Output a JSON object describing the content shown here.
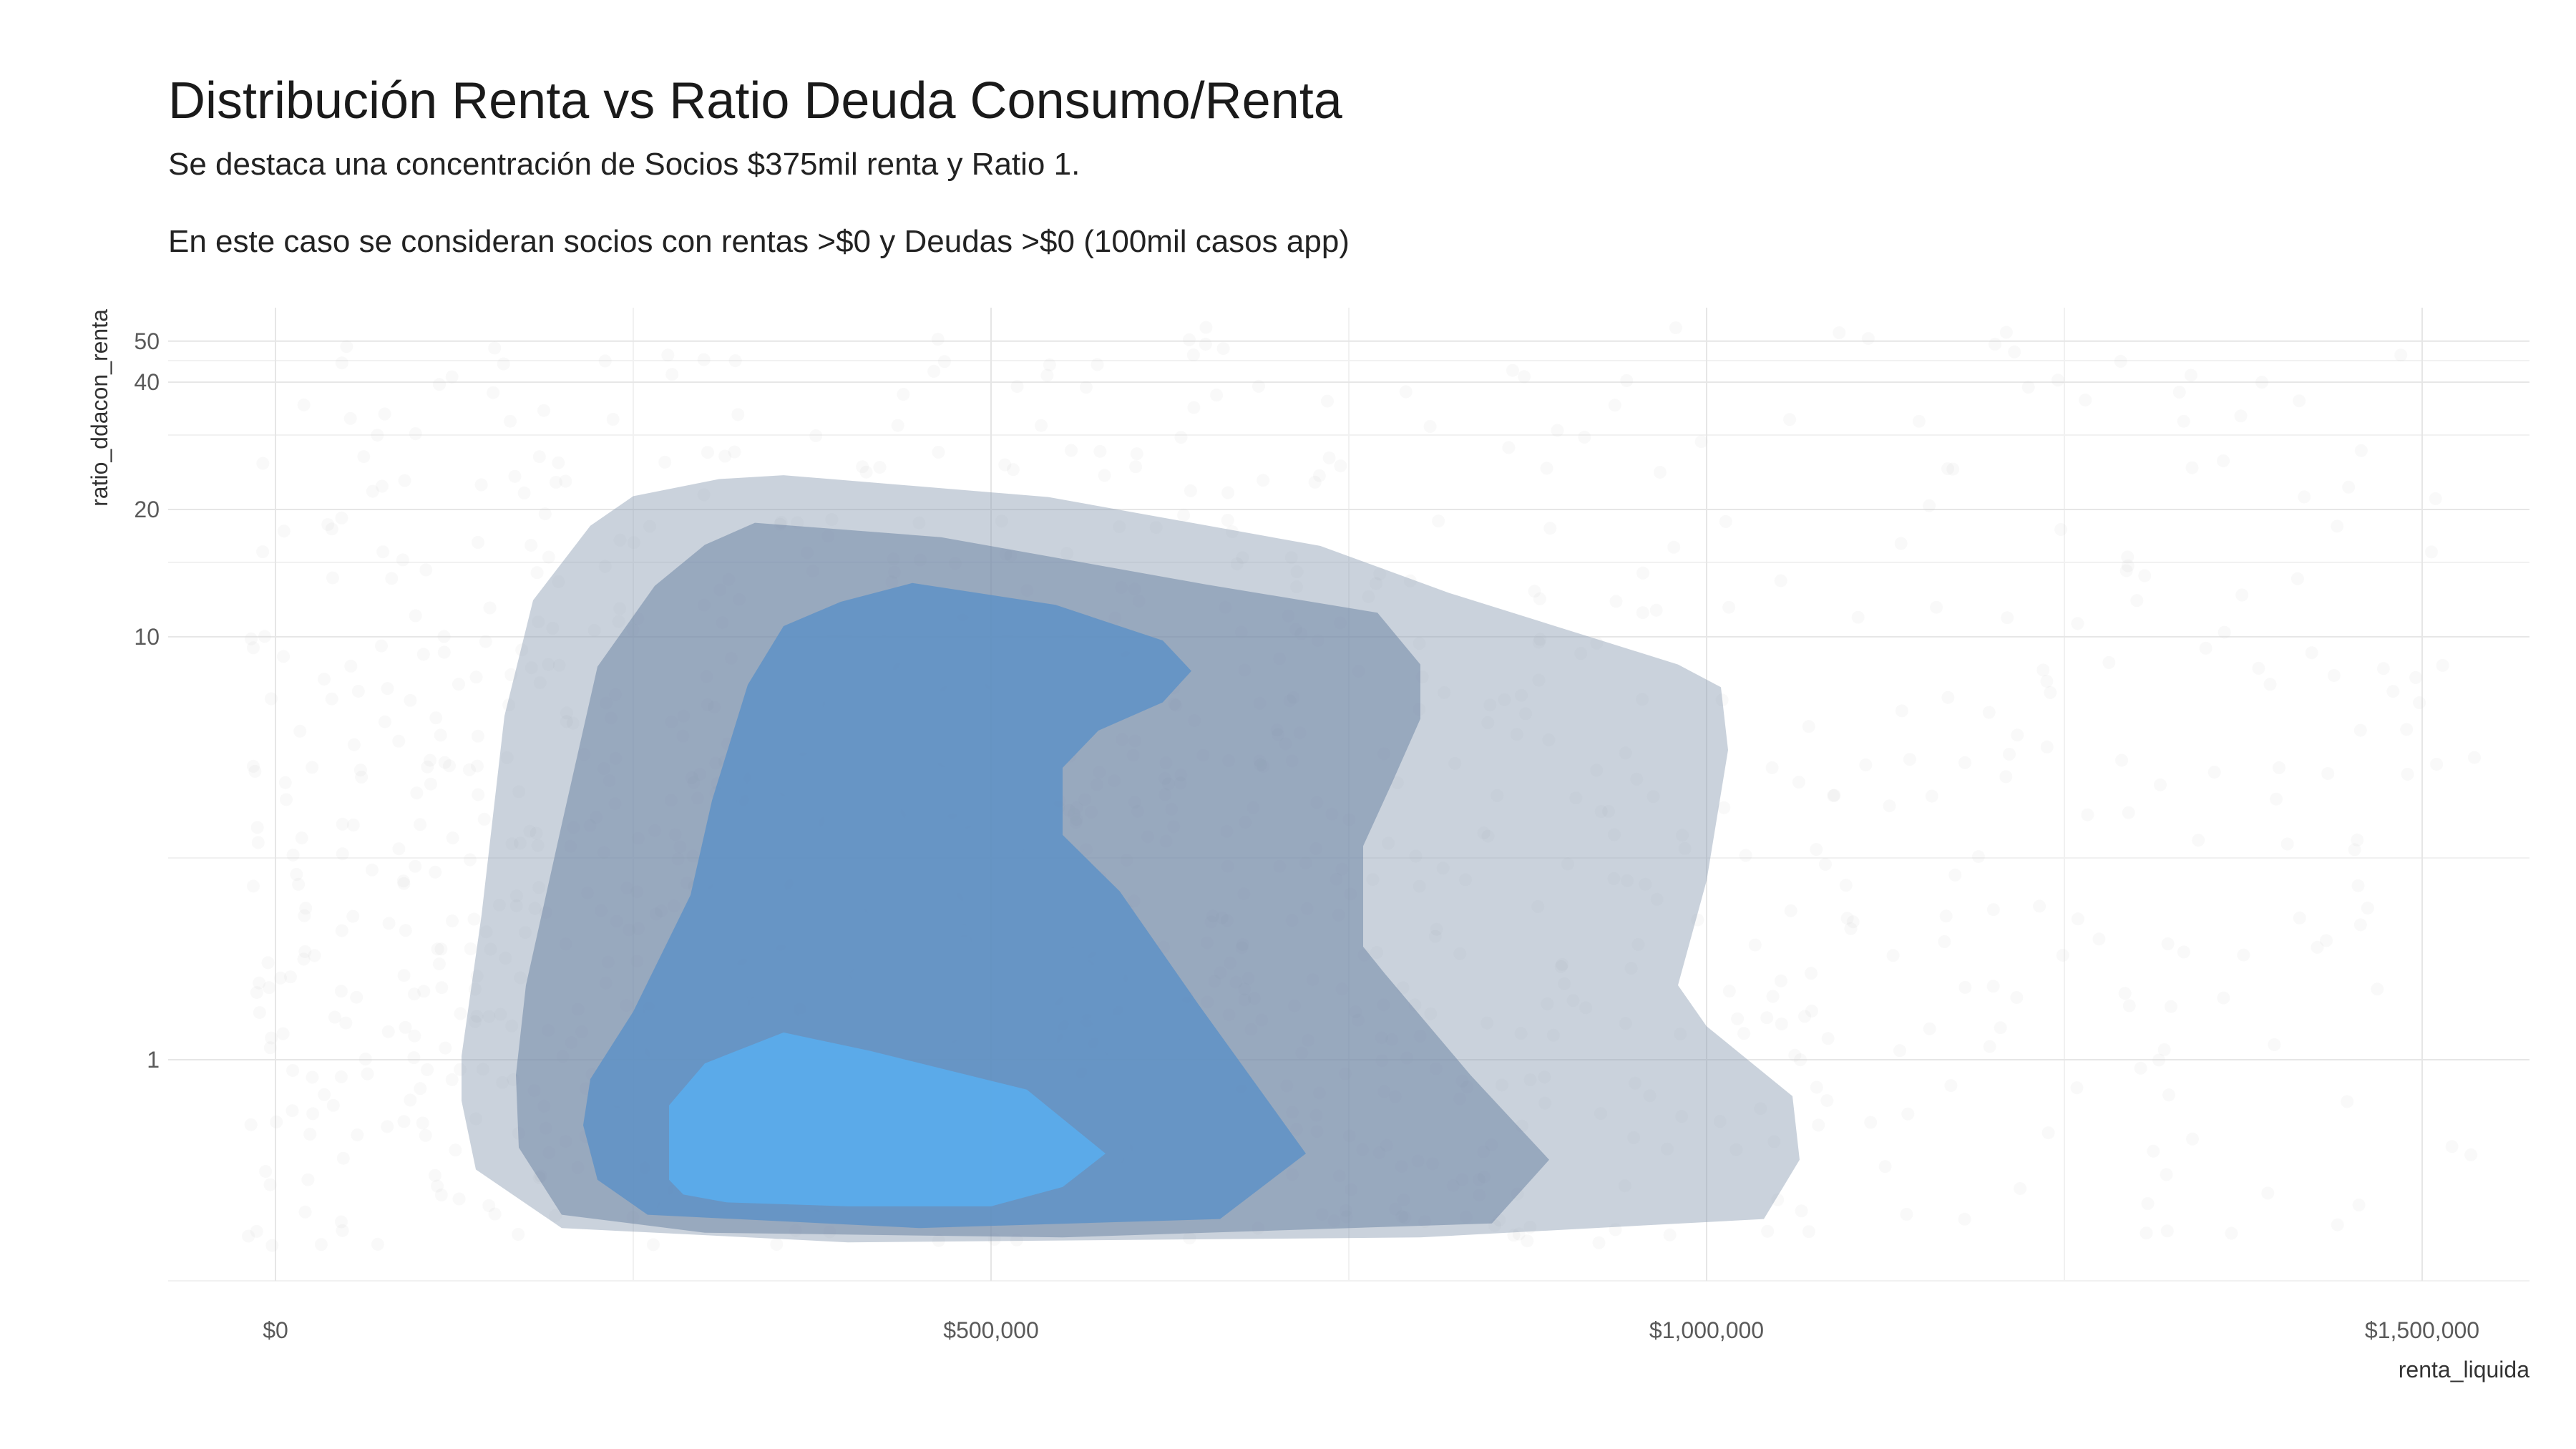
{
  "chart_data": {
    "type": "density_contour",
    "title": "Distribución Renta vs Ratio Deuda Consumo/Renta",
    "subtitle": "Se destaca una concentración de Socios $375mil renta y Ratio 1.",
    "subtitle2": "En este caso se consideran socios con rentas >$0 y Deudas >$0 (100mil casos app)",
    "xlabel": "renta_liquida",
    "ylabel": "ratio_ddacon_renta",
    "x_scale": "linear",
    "y_scale": "log",
    "xlim": [
      -75000,
      1575000
    ],
    "ylim": [
      0.3,
      60
    ],
    "x_ticks": [
      {
        "value": 0,
        "label": "$0"
      },
      {
        "value": 500000,
        "label": "$500,000"
      },
      {
        "value": 1000000,
        "label": "$1,000,000"
      },
      {
        "value": 1500000,
        "label": "$1,500,000"
      }
    ],
    "y_ticks": [
      {
        "value": 1,
        "label": "1"
      },
      {
        "value": 10,
        "label": "10"
      },
      {
        "value": 20,
        "label": "20"
      },
      {
        "value": 40,
        "label": "40"
      },
      {
        "value": 50,
        "label": "50"
      }
    ],
    "x_minor_breaks": [
      250000,
      750000,
      1250000
    ],
    "y_minor_breaks": [
      0.3,
      3,
      15,
      30,
      45
    ],
    "grid": true,
    "legend": "none",
    "scatter_color": "#d0d0d0",
    "levels": [
      {
        "level": 1,
        "color": "#8a9bb2",
        "opacity": 0.45,
        "polygon": [
          [
            130000,
            1.02
          ],
          [
            144000,
            2.2
          ],
          [
            160000,
            6.5
          ],
          [
            180000,
            12.2
          ],
          [
            220000,
            18.3
          ],
          [
            250000,
            21.5
          ],
          [
            310000,
            23.6
          ],
          [
            355000,
            24.1
          ],
          [
            540000,
            21.4
          ],
          [
            730000,
            16.4
          ],
          [
            820000,
            12.7
          ],
          [
            980000,
            8.6
          ],
          [
            1010000,
            7.6
          ],
          [
            1015000,
            5.4
          ],
          [
            1000000,
            2.65
          ],
          [
            980000,
            1.5
          ],
          [
            1000000,
            1.2
          ],
          [
            1060000,
            0.82
          ],
          [
            1065000,
            0.58
          ],
          [
            1040000,
            0.42
          ],
          [
            800000,
            0.38
          ],
          [
            400000,
            0.37
          ],
          [
            200000,
            0.4
          ],
          [
            140000,
            0.55
          ],
          [
            130000,
            0.8
          ]
        ]
      },
      {
        "level": 2,
        "color": "#6f87a6",
        "opacity": 0.55,
        "polygon": [
          [
            170000,
            0.62
          ],
          [
            168000,
            0.92
          ],
          [
            175000,
            1.5
          ],
          [
            200000,
            3.6
          ],
          [
            225000,
            8.5
          ],
          [
            265000,
            13.2
          ],
          [
            300000,
            16.5
          ],
          [
            335000,
            18.6
          ],
          [
            465000,
            17.2
          ],
          [
            650000,
            13.3
          ],
          [
            770000,
            11.4
          ],
          [
            800000,
            8.6
          ],
          [
            800000,
            6.4
          ],
          [
            780000,
            4.5
          ],
          [
            760000,
            3.2
          ],
          [
            760000,
            1.85
          ],
          [
            775000,
            1.6
          ],
          [
            835000,
            0.92
          ],
          [
            890000,
            0.58
          ],
          [
            850000,
            0.41
          ],
          [
            550000,
            0.38
          ],
          [
            300000,
            0.39
          ],
          [
            200000,
            0.43
          ]
        ]
      },
      {
        "level": 3,
        "color": "#5a8fc6",
        "opacity": 0.78,
        "polygon": [
          [
            215000,
            0.7
          ],
          [
            220000,
            0.9
          ],
          [
            250000,
            1.3
          ],
          [
            290000,
            2.45
          ],
          [
            305000,
            4.1
          ],
          [
            330000,
            7.7
          ],
          [
            355000,
            10.6
          ],
          [
            395000,
            12.1
          ],
          [
            445000,
            13.4
          ],
          [
            545000,
            11.9
          ],
          [
            620000,
            9.8
          ],
          [
            640000,
            8.3
          ],
          [
            620000,
            7.0
          ],
          [
            575000,
            6.0
          ],
          [
            550000,
            4.9
          ],
          [
            550000,
            3.4
          ],
          [
            590000,
            2.5
          ],
          [
            645000,
            1.35
          ],
          [
            720000,
            0.6
          ],
          [
            660000,
            0.42
          ],
          [
            450000,
            0.4
          ],
          [
            260000,
            0.43
          ],
          [
            225000,
            0.52
          ]
        ]
      },
      {
        "level": 4,
        "color": "#5aabec",
        "opacity": 0.92,
        "polygon": [
          [
            275000,
            0.52
          ],
          [
            275000,
            0.78
          ],
          [
            300000,
            0.98
          ],
          [
            355000,
            1.16
          ],
          [
            415000,
            1.05
          ],
          [
            525000,
            0.85
          ],
          [
            580000,
            0.6
          ],
          [
            550000,
            0.5
          ],
          [
            500000,
            0.45
          ],
          [
            400000,
            0.45
          ],
          [
            315000,
            0.46
          ],
          [
            285000,
            0.48
          ]
        ]
      }
    ]
  }
}
